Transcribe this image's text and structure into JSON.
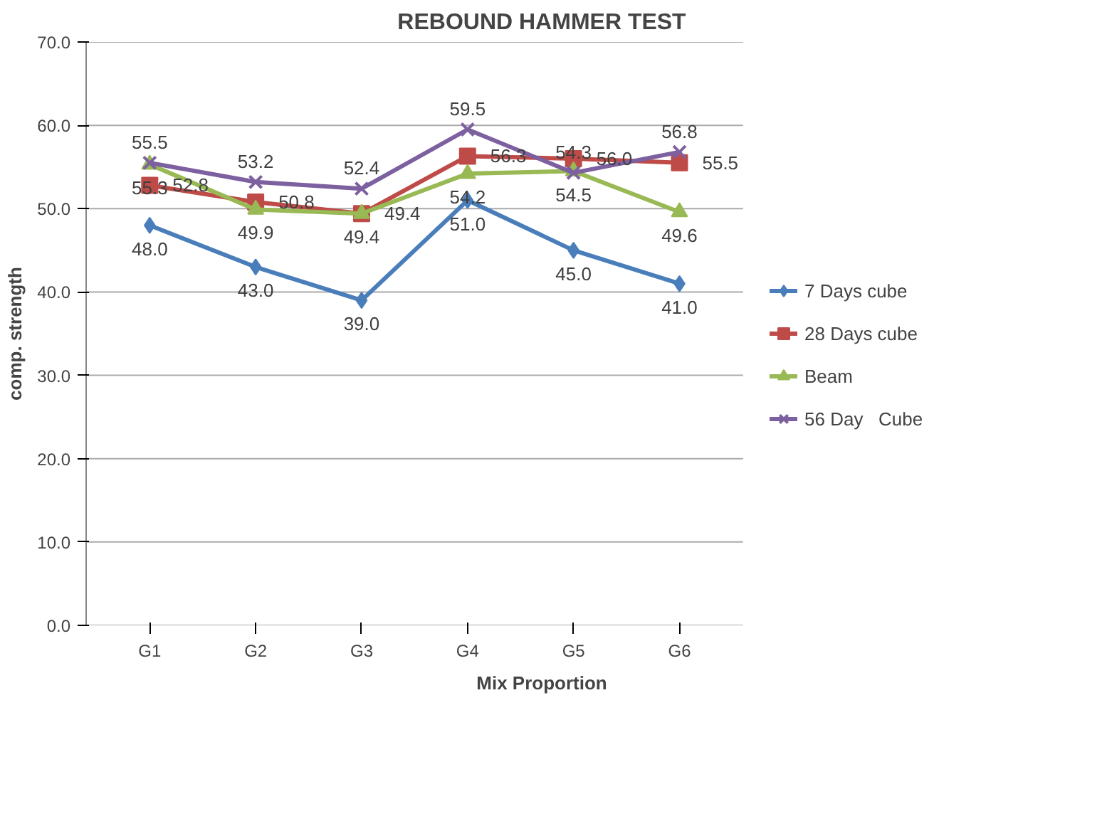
{
  "chart_data": {
    "type": "line",
    "title": "REBOUND HAMMER TEST",
    "xlabel": "Mix Proportion",
    "ylabel": "comp. strength",
    "categories": [
      "G1",
      "G2",
      "G3",
      "G4",
      "G5",
      "G6"
    ],
    "series": [
      {
        "name": "7 Days cube",
        "color": "#4a7ebb",
        "marker": "diamond",
        "values": [
          48.0,
          43.0,
          39.0,
          51.0,
          45.0,
          41.0
        ],
        "value_labels": [
          "48.0",
          "43.0",
          "39.0",
          "51.0",
          "45.0",
          "41.0"
        ]
      },
      {
        "name": "28 Days cube",
        "color": "#be4b48",
        "marker": "square",
        "values": [
          52.8,
          50.8,
          49.4,
          56.3,
          56.0,
          55.5
        ],
        "value_labels": [
          "52.8",
          "50.8",
          "49.4",
          "56.3",
          "56.0",
          "55.5"
        ]
      },
      {
        "name": "Beam",
        "color": "#98b954",
        "marker": "triangle",
        "values": [
          55.3,
          49.9,
          49.4,
          54.2,
          54.5,
          49.6
        ],
        "value_labels": [
          "55.3",
          "49.9",
          "49.4",
          "54.2",
          "54.5",
          "49.6"
        ]
      },
      {
        "name": "56 Day   Cube",
        "color": "#7d60a0",
        "marker": "cross",
        "values": [
          55.5,
          53.2,
          52.4,
          59.5,
          54.3,
          56.8
        ],
        "value_labels": [
          "55.5",
          "53.2",
          "52.4",
          "59.5",
          "54.3",
          "56.8"
        ]
      }
    ],
    "ylim": [
      0,
      70
    ],
    "yticks": [
      {
        "value": 0,
        "label": "0.0"
      },
      {
        "value": 10,
        "label": "10.0"
      },
      {
        "value": 20,
        "label": "20.0"
      },
      {
        "value": 30,
        "label": "30.0"
      },
      {
        "value": 40,
        "label": "40.0"
      },
      {
        "value": 50,
        "label": "50.0"
      },
      {
        "value": 60,
        "label": "60.0"
      },
      {
        "value": 70,
        "label": "70.0"
      }
    ],
    "grid": "y",
    "legend": "right",
    "line_style": "solid"
  }
}
